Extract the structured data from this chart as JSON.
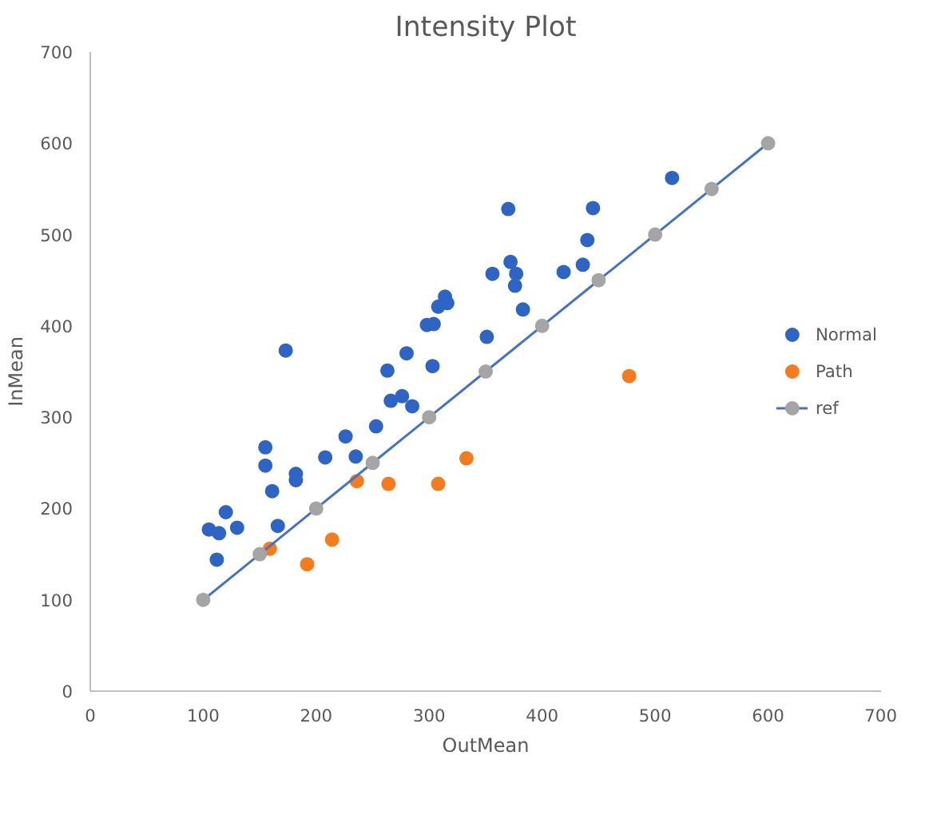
{
  "chart_data": {
    "type": "scatter",
    "title": "Intensity Plot",
    "xlabel": "OutMean",
    "ylabel": "InMean",
    "xlim": [
      0,
      700
    ],
    "ylim": [
      0,
      700
    ],
    "xticks": [
      0,
      100,
      200,
      300,
      400,
      500,
      600,
      700
    ],
    "yticks": [
      0,
      100,
      200,
      300,
      400,
      500,
      600,
      700
    ],
    "grid": false,
    "legend": "right",
    "marker": "circle",
    "series": [
      {
        "name": "Normal",
        "color": "#2e65c4",
        "x": [
          105,
          114,
          112,
          120,
          130,
          155,
          155,
          161,
          166,
          173,
          182,
          182,
          208,
          226,
          235,
          253,
          263,
          266,
          276,
          280,
          285,
          298,
          304,
          303,
          308,
          314,
          316,
          351,
          356,
          370,
          372,
          377,
          376,
          383,
          419,
          436,
          440,
          445,
          515
        ],
        "values": [
          177,
          173,
          144,
          196,
          179,
          267,
          247,
          219,
          181,
          373,
          238,
          231,
          256,
          279,
          257,
          290,
          351,
          318,
          323,
          370,
          312,
          401,
          402,
          356,
          421,
          432,
          425,
          388,
          457,
          528,
          470,
          457,
          444,
          418,
          459,
          467,
          494,
          529,
          562
        ]
      },
      {
        "name": "Path",
        "color": "#f47b20",
        "x": [
          159,
          192,
          214,
          236,
          264,
          308,
          333,
          477
        ],
        "values": [
          156,
          139,
          166,
          230,
          227,
          227,
          255,
          345
        ]
      },
      {
        "name": "ref",
        "type": "line",
        "color": "#4472c4",
        "colors": [
          "#a5a5a5",
          "#a5a5a5",
          "#a5a5a5",
          "#a5a5a5",
          "#a5a5a5",
          "#a5a5a5",
          "#a5a5a5",
          "#a5a5a5",
          "#a5a5a5",
          "#a5a5a5",
          "#a5a5a5"
        ],
        "x": [
          100,
          150,
          200,
          250,
          300,
          350,
          400,
          450,
          500,
          550,
          600
        ],
        "values": [
          100,
          150,
          200,
          250,
          300,
          350,
          400,
          450,
          500,
          550,
          600
        ]
      }
    ]
  }
}
